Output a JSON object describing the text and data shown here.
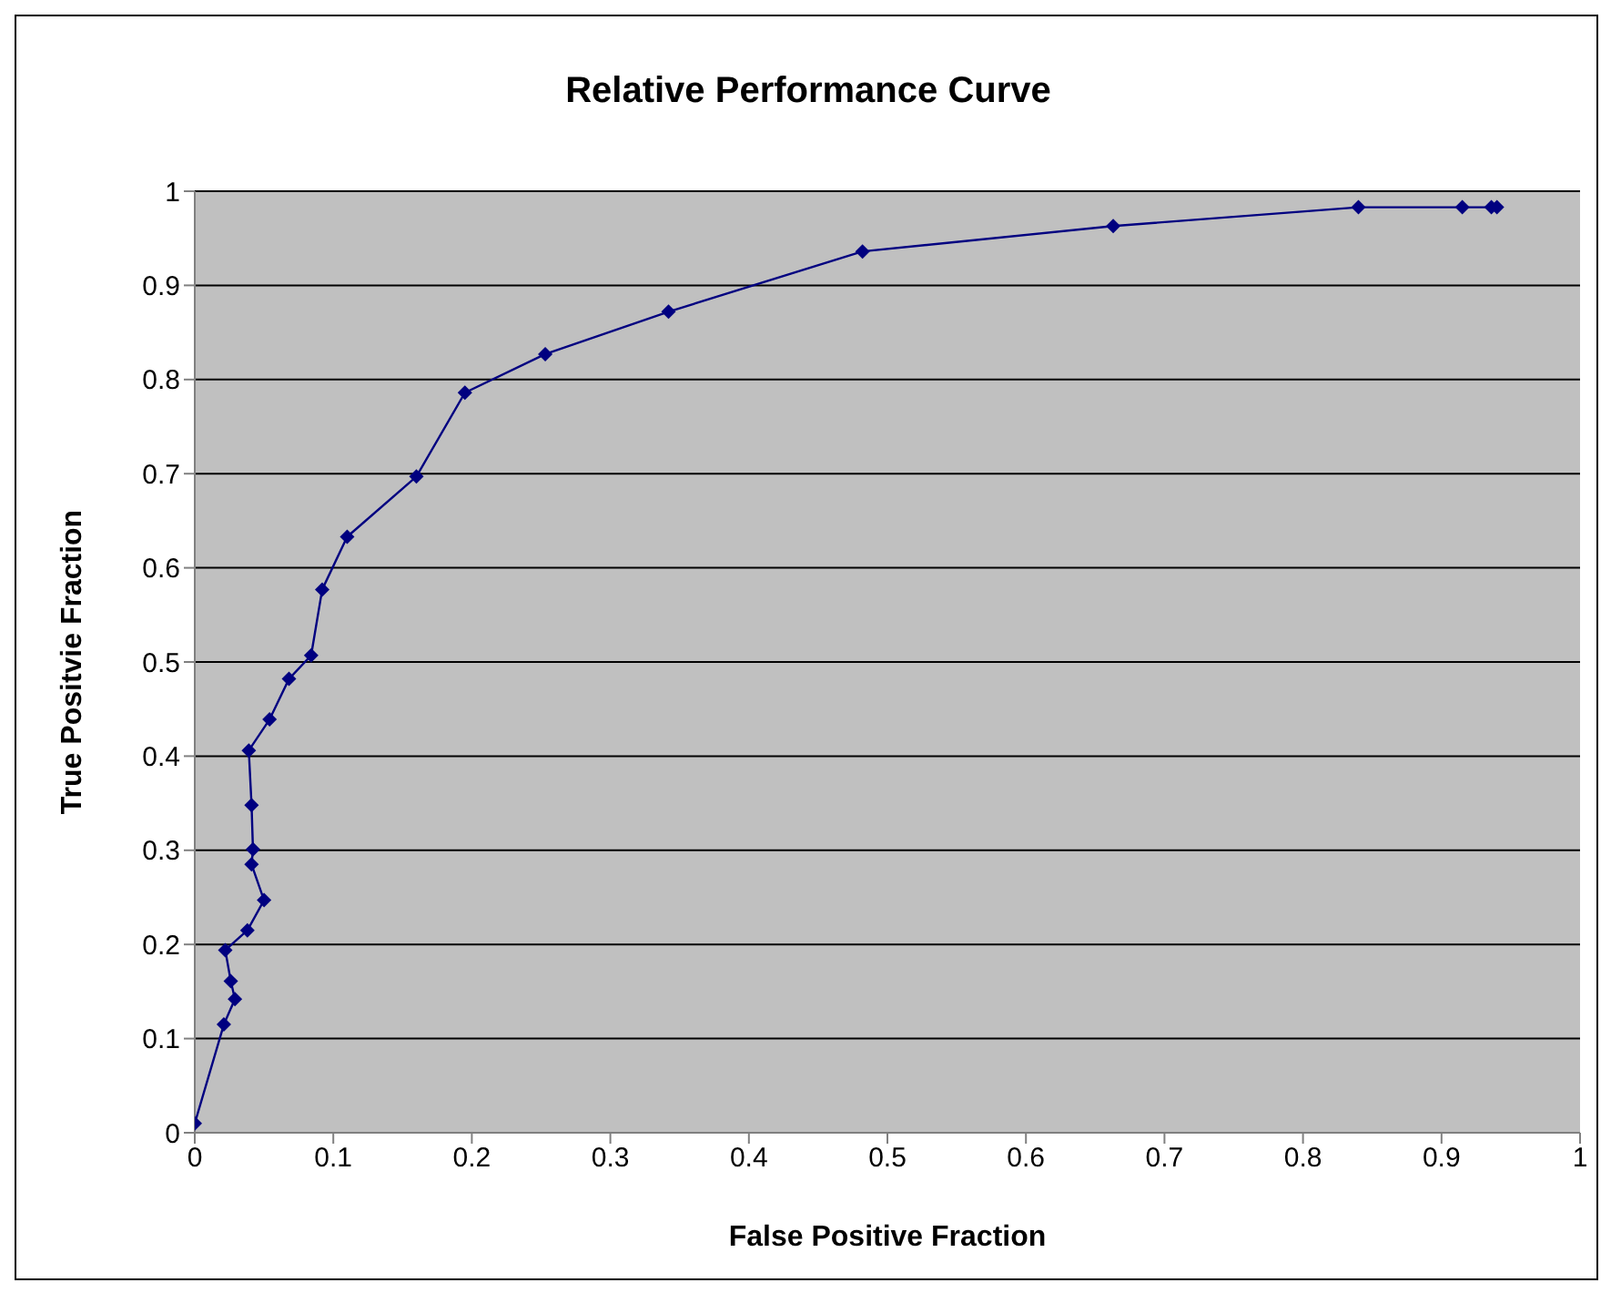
{
  "chart_data": {
    "type": "line",
    "title": "Relative Performance Curve",
    "xlabel": "False Positive Fraction",
    "ylabel": "True Positvie Fraction",
    "x": [
      0,
      0.021,
      0.029,
      0.026,
      0.022,
      0.038,
      0.05,
      0.041,
      0.042,
      0.041,
      0.039,
      0.054,
      0.068,
      0.084,
      0.092,
      0.11,
      0.16,
      0.195,
      0.253,
      0.342,
      0.482,
      0.663,
      0.84,
      0.915,
      0.936,
      0.94
    ],
    "series": [
      {
        "color": "#000080",
        "values": [
          0.01,
          0.115,
          0.142,
          0.161,
          0.194,
          0.215,
          0.247,
          0.285,
          0.301,
          0.348,
          0.406,
          0.439,
          0.482,
          0.507,
          0.577,
          0.633,
          0.697,
          0.786,
          0.827,
          0.872,
          0.936,
          0.963,
          0.983,
          0.983,
          0.983,
          0.983
        ]
      }
    ],
    "xlim": [
      0,
      1
    ],
    "xticks": [
      0,
      0.1,
      0.2,
      0.3,
      0.4,
      0.5,
      0.6,
      0.7,
      0.8,
      0.9,
      1
    ],
    "ylim": [
      0,
      1
    ],
    "yticks": [
      0,
      0.1,
      0.2,
      0.3,
      0.4,
      0.5,
      0.6,
      0.7,
      0.8,
      0.9,
      1
    ],
    "grid": "y",
    "legend": false,
    "marker": "diamond",
    "line_style": "solid"
  }
}
